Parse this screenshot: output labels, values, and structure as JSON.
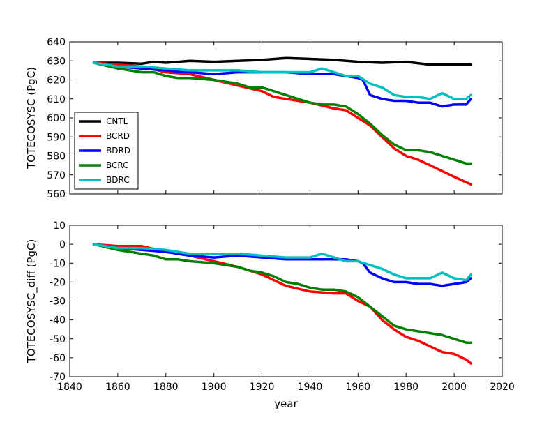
{
  "chart_data": [
    {
      "type": "line",
      "ylabel": "TOTECOSYSC (PgC)",
      "xlim": [
        1840,
        2020
      ],
      "ylim": [
        560,
        640
      ],
      "yticks": [
        560,
        570,
        580,
        590,
        600,
        610,
        620,
        630,
        640
      ],
      "legend_position": "lower-left",
      "series": [
        {
          "name": "CNTL",
          "color": "#000000",
          "x": [
            1850,
            1860,
            1870,
            1875,
            1880,
            1890,
            1900,
            1910,
            1920,
            1930,
            1940,
            1950,
            1960,
            1970,
            1980,
            1990,
            2000,
            2007
          ],
          "y": [
            629,
            629,
            628.5,
            629.5,
            629,
            630,
            629.5,
            630,
            630.5,
            631.5,
            631,
            630.5,
            629.5,
            629,
            629.5,
            628,
            628,
            628
          ]
        },
        {
          "name": "BCRD",
          "color": "#ff0000",
          "x": [
            1850,
            1860,
            1870,
            1880,
            1890,
            1900,
            1910,
            1920,
            1925,
            1930,
            1940,
            1950,
            1955,
            1960,
            1965,
            1970,
            1975,
            1980,
            1985,
            1990,
            1995,
            2000,
            2007
          ],
          "y": [
            629,
            628,
            627,
            624,
            623,
            620,
            617,
            614,
            611,
            610,
            608,
            605,
            604,
            600,
            596,
            590,
            584,
            580,
            578,
            575,
            572,
            569,
            565
          ]
        },
        {
          "name": "BDRD",
          "color": "#0000ff",
          "x": [
            1850,
            1860,
            1870,
            1880,
            1890,
            1900,
            1910,
            1920,
            1930,
            1940,
            1950,
            1955,
            1960,
            1962,
            1965,
            1970,
            1975,
            1980,
            1985,
            1990,
            1995,
            2000,
            2005,
            2007
          ],
          "y": [
            629,
            627,
            626,
            625,
            624,
            623,
            624,
            624,
            624,
            623,
            623,
            622,
            621,
            620,
            612,
            610,
            609,
            609,
            608,
            608,
            606,
            607,
            607,
            610
          ]
        },
        {
          "name": "BCRC",
          "color": "#008000",
          "x": [
            1850,
            1860,
            1865,
            1870,
            1875,
            1880,
            1885,
            1890,
            1900,
            1910,
            1915,
            1920,
            1925,
            1930,
            1935,
            1940,
            1945,
            1950,
            1955,
            1960,
            1965,
            1970,
            1975,
            1980,
            1985,
            1990,
            1995,
            2000,
            2005,
            2007
          ],
          "y": [
            629,
            626,
            625,
            624,
            624,
            622,
            621,
            621,
            620,
            618,
            616,
            616,
            614,
            612,
            610,
            608,
            607,
            607,
            606,
            602,
            597,
            591,
            586,
            583,
            583,
            582,
            580,
            578,
            576,
            576
          ]
        },
        {
          "name": "BDRC",
          "color": "#00bfbf",
          "x": [
            1850,
            1860,
            1870,
            1880,
            1890,
            1900,
            1910,
            1920,
            1930,
            1940,
            1945,
            1950,
            1955,
            1960,
            1965,
            1970,
            1975,
            1980,
            1985,
            1990,
            1995,
            2000,
            2005,
            2007
          ],
          "y": [
            629,
            627,
            627,
            626,
            625,
            625,
            625,
            624,
            624,
            624,
            626,
            624,
            622,
            622,
            618,
            616,
            612,
            611,
            611,
            610,
            613,
            610,
            610,
            612
          ]
        }
      ]
    },
    {
      "type": "line",
      "xlabel": "year",
      "ylabel": "TOTECOSYSC_diff (PgC)",
      "xlim": [
        1840,
        2020
      ],
      "ylim": [
        -70,
        10
      ],
      "xticks": [
        1840,
        1860,
        1880,
        1900,
        1920,
        1940,
        1960,
        1980,
        2000,
        2020
      ],
      "yticks": [
        -70,
        -60,
        -50,
        -40,
        -30,
        -20,
        -10,
        0,
        10
      ],
      "series": [
        {
          "name": "BCRD",
          "color": "#ff0000",
          "x": [
            1850,
            1860,
            1870,
            1880,
            1890,
            1900,
            1910,
            1920,
            1925,
            1930,
            1940,
            1950,
            1955,
            1960,
            1965,
            1970,
            1975,
            1980,
            1985,
            1990,
            1995,
            2000,
            2005,
            2007
          ],
          "y": [
            0,
            -1,
            -1,
            -4,
            -6,
            -9,
            -12,
            -16,
            -19,
            -22,
            -25,
            -26,
            -26,
            -30,
            -33,
            -40,
            -45,
            -49,
            -51,
            -54,
            -57,
            -58,
            -61,
            -63
          ]
        },
        {
          "name": "BDRD",
          "color": "#0000ff",
          "x": [
            1850,
            1860,
            1870,
            1880,
            1890,
            1900,
            1910,
            1920,
            1930,
            1940,
            1950,
            1955,
            1960,
            1962,
            1965,
            1970,
            1975,
            1980,
            1985,
            1990,
            1995,
            2000,
            2005,
            2007
          ],
          "y": [
            0,
            -2,
            -3,
            -4,
            -6,
            -7,
            -6,
            -7,
            -8,
            -8,
            -8,
            -8,
            -9,
            -10,
            -15,
            -18,
            -20,
            -20,
            -21,
            -21,
            -22,
            -21,
            -20,
            -18
          ]
        },
        {
          "name": "BCRC",
          "color": "#008000",
          "x": [
            1850,
            1860,
            1865,
            1870,
            1875,
            1880,
            1885,
            1890,
            1900,
            1910,
            1915,
            1920,
            1925,
            1930,
            1935,
            1940,
            1945,
            1950,
            1955,
            1960,
            1965,
            1970,
            1975,
            1980,
            1985,
            1990,
            1995,
            2000,
            2005,
            2007
          ],
          "y": [
            0,
            -3,
            -4,
            -5,
            -6,
            -8,
            -8,
            -9,
            -10,
            -12,
            -14,
            -15,
            -17,
            -20,
            -21,
            -23,
            -24,
            -24,
            -25,
            -28,
            -33,
            -38,
            -43,
            -45,
            -46,
            -47,
            -48,
            -50,
            -52,
            -52
          ]
        },
        {
          "name": "BDRC",
          "color": "#00bfbf",
          "x": [
            1850,
            1860,
            1870,
            1880,
            1890,
            1900,
            1910,
            1920,
            1930,
            1940,
            1945,
            1950,
            1955,
            1960,
            1965,
            1970,
            1975,
            1980,
            1985,
            1990,
            1995,
            2000,
            2005,
            2007
          ],
          "y": [
            0,
            -2,
            -2,
            -3,
            -5,
            -5,
            -5,
            -6,
            -7,
            -7,
            -5,
            -7,
            -9,
            -9,
            -11,
            -13,
            -16,
            -18,
            -18,
            -18,
            -15,
            -18,
            -19,
            -16
          ]
        }
      ]
    }
  ]
}
